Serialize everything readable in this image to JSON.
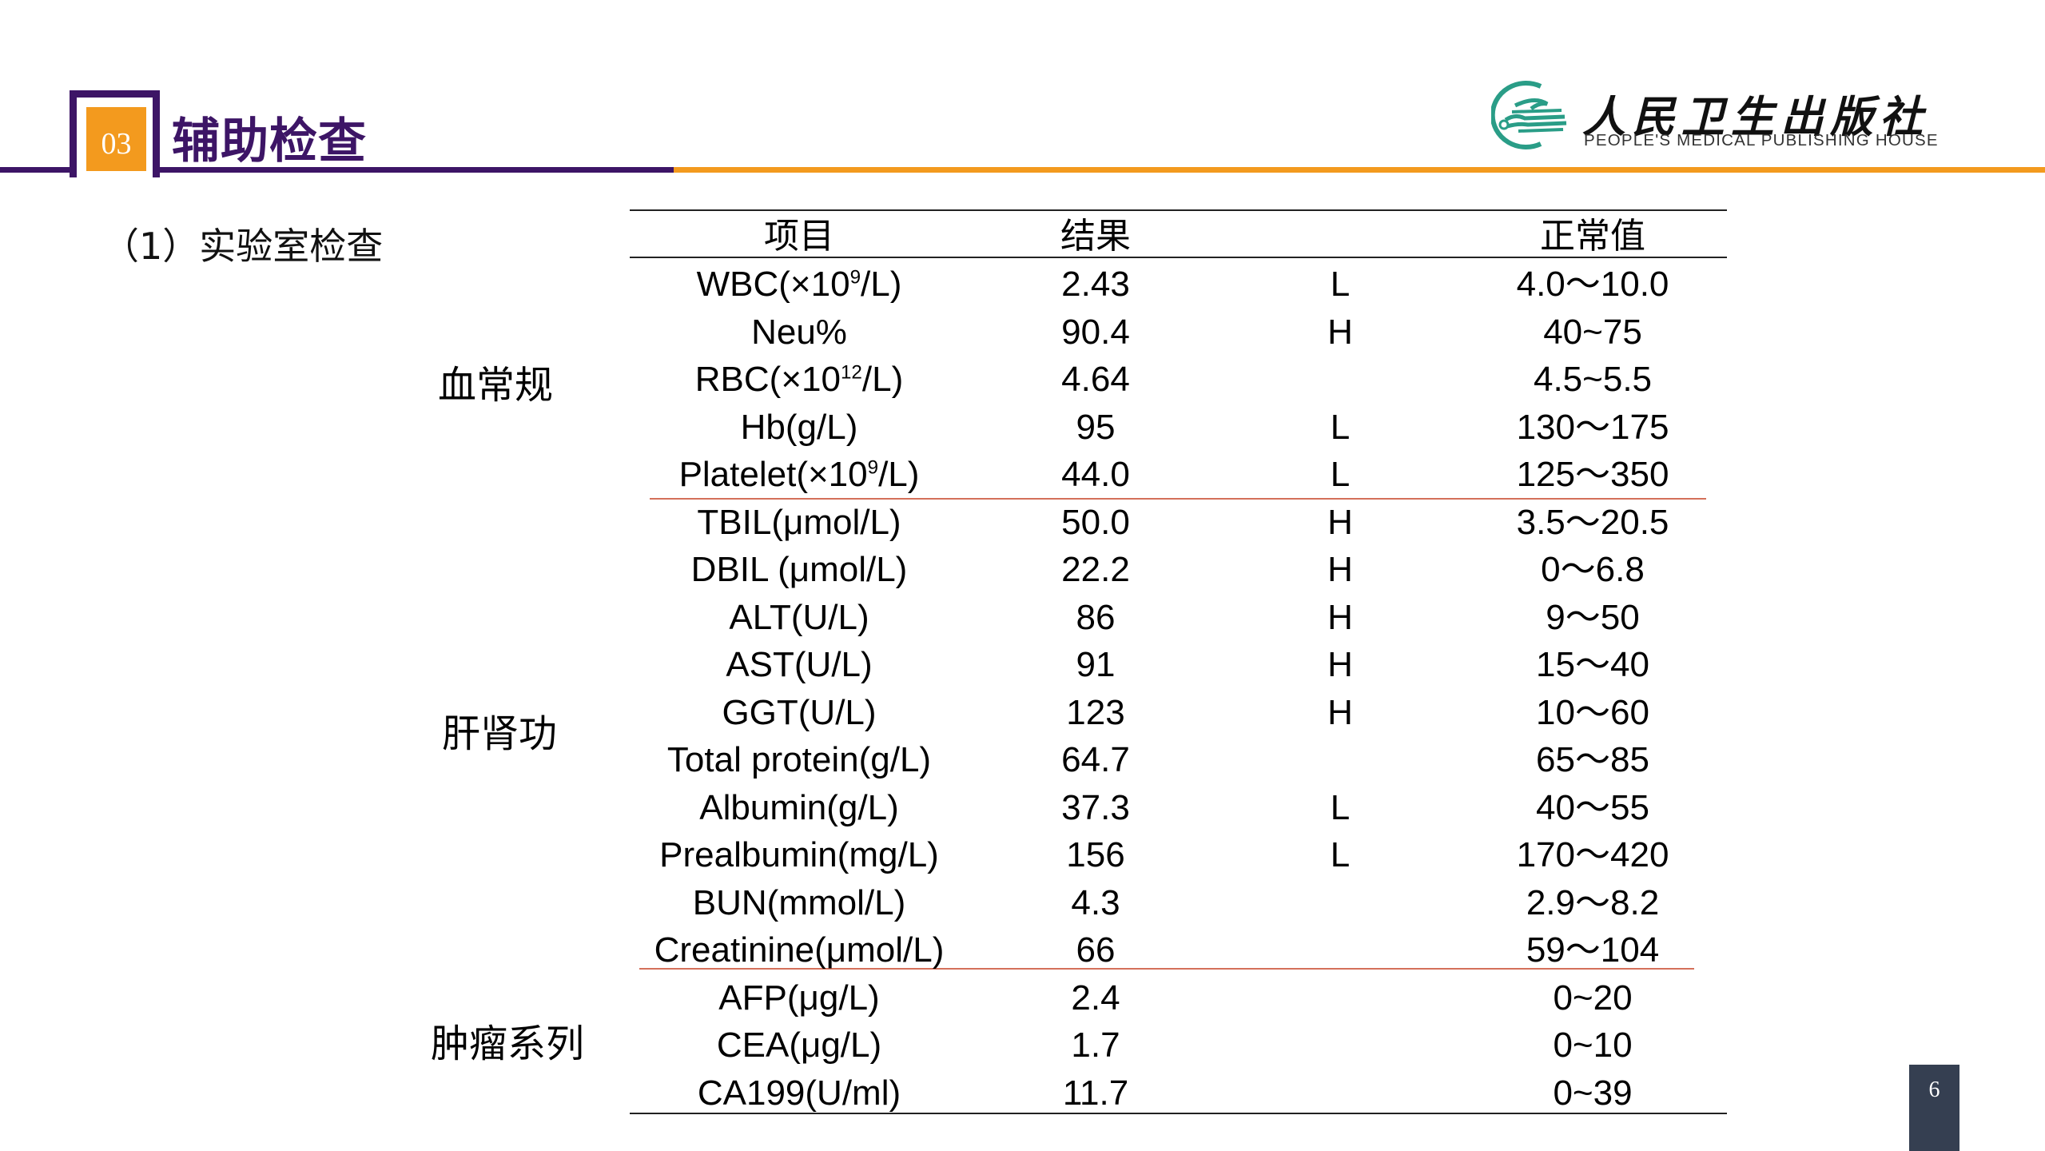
{
  "header": {
    "section_number": "03",
    "title": "辅助检查",
    "colors": {
      "purple": "#3d1566",
      "orange": "#f39a1e"
    }
  },
  "logo": {
    "name_cn": "人民卫生出版社",
    "name_en": "PEOPLE'S MEDICAL PUBLISHING HOUSE",
    "icon": "pmph-logo-icon",
    "color": "#2a9d87"
  },
  "subtitle": "（1）实验室检查",
  "table": {
    "headers": {
      "item": "项目",
      "result": "结果",
      "flag": "",
      "normal": "正常值"
    },
    "categories": [
      {
        "label": "血常规"
      },
      {
        "label": "肝肾功"
      },
      {
        "label": "肿瘤系列"
      }
    ],
    "rows": [
      {
        "item": "WBC(×10",
        "sup": "9",
        "item_tail": "/L)",
        "result": "2.43",
        "flag": "L",
        "normal": "4.0～10.0"
      },
      {
        "item": "Neu%",
        "sup": "",
        "item_tail": "",
        "result": "90.4",
        "flag": "H",
        "normal": "40~75"
      },
      {
        "item": "RBC(×10",
        "sup": "12",
        "item_tail": "/L)",
        "result": "4.64",
        "flag": "",
        "normal": "4.5~5.5"
      },
      {
        "item": "Hb(g/L)",
        "sup": "",
        "item_tail": "",
        "result": "95",
        "flag": "L",
        "normal": "130～175"
      },
      {
        "item": "Platelet(×10",
        "sup": "9",
        "item_tail": "/L)",
        "result": "44.0",
        "flag": "L",
        "normal": "125～350"
      },
      {
        "item": "TBIL(μmol/L)",
        "sup": "",
        "item_tail": "",
        "result": "50.0",
        "flag": "H",
        "normal": "3.5～20.5"
      },
      {
        "item": "DBIL (μmol/L)",
        "sup": "",
        "item_tail": "",
        "result": "22.2",
        "flag": "H",
        "normal": "0～6.8"
      },
      {
        "item": "ALT(U/L)",
        "sup": "",
        "item_tail": "",
        "result": "86",
        "flag": "H",
        "normal": "9～50"
      },
      {
        "item": "AST(U/L)",
        "sup": "",
        "item_tail": "",
        "result": "91",
        "flag": "H",
        "normal": "15～40"
      },
      {
        "item": "GGT(U/L)",
        "sup": "",
        "item_tail": "",
        "result": "123",
        "flag": "H",
        "normal": "10～60"
      },
      {
        "item": "Total protein(g/L)",
        "sup": "",
        "item_tail": "",
        "result": "64.7",
        "flag": "",
        "normal": "65～85"
      },
      {
        "item": "Albumin(g/L)",
        "sup": "",
        "item_tail": "",
        "result": "37.3",
        "flag": "L",
        "normal": "40～55"
      },
      {
        "item": "Prealbumin(mg/L)",
        "sup": "",
        "item_tail": "",
        "result": "156",
        "flag": "L",
        "normal": "170～420"
      },
      {
        "item": "BUN(mmol/L)",
        "sup": "",
        "item_tail": "",
        "result": "4.3",
        "flag": "",
        "normal": "2.9～8.2"
      },
      {
        "item": "Creatinine(μmol/L)",
        "sup": "",
        "item_tail": "",
        "result": "66",
        "flag": "",
        "normal": "59～104"
      },
      {
        "item": "AFP(μg/L)",
        "sup": "",
        "item_tail": "",
        "result": "2.4",
        "flag": "",
        "normal": "0~20"
      },
      {
        "item": "CEA(μg/L)",
        "sup": "",
        "item_tail": "",
        "result": "1.7",
        "flag": "",
        "normal": "0~10"
      },
      {
        "item": "CA199(U/ml)",
        "sup": "",
        "item_tail": "",
        "result": "11.7",
        "flag": "",
        "normal": "0~39"
      }
    ]
  },
  "page_number": "6"
}
